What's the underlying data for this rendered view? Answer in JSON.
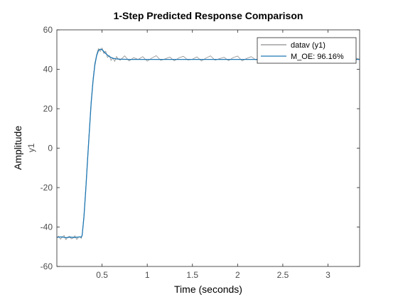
{
  "window": {
    "background_color": "#ffffff"
  },
  "chart_data": {
    "type": "line",
    "title": "1-Step Predicted Response Comparison",
    "xlabel": "Time (seconds)",
    "ylabel": "Amplitude",
    "channel_label": "y1",
    "xlim": [
      0,
      3.35
    ],
    "ylim": [
      -60,
      60
    ],
    "x_ticks": [
      0.5,
      1,
      1.5,
      2,
      2.5,
      3
    ],
    "x_tick_labels": [
      "0.5",
      "1",
      "1.5",
      "2",
      "2.5",
      "3"
    ],
    "y_ticks": [
      -60,
      -40,
      -20,
      0,
      20,
      40,
      60
    ],
    "y_tick_labels": [
      "-60",
      "-40",
      "-20",
      "0",
      "20",
      "40",
      "60"
    ],
    "grid": false,
    "legend_position": "top-right",
    "series": [
      {
        "name": "datav (y1)",
        "color": "#8c8c8c",
        "x": [
          0.0,
          0.02,
          0.04,
          0.06,
          0.08,
          0.1,
          0.12,
          0.14,
          0.16,
          0.18,
          0.2,
          0.22,
          0.24,
          0.26,
          0.27,
          0.28,
          0.3,
          0.32,
          0.34,
          0.36,
          0.38,
          0.4,
          0.42,
          0.44,
          0.46,
          0.48,
          0.5,
          0.52,
          0.54,
          0.56,
          0.58,
          0.6,
          0.62,
          0.64,
          0.66,
          0.68,
          0.7,
          0.75,
          0.8,
          0.85,
          0.9,
          0.95,
          1.0,
          1.05,
          1.1,
          1.15,
          1.2,
          1.25,
          1.3,
          1.35,
          1.4,
          1.45,
          1.5,
          1.55,
          1.6,
          1.65,
          1.7,
          1.75,
          1.8,
          1.85,
          1.9,
          1.95,
          2.0,
          2.05,
          2.1,
          2.15,
          2.2,
          2.25,
          2.3,
          2.35,
          2.4,
          2.45,
          2.5,
          2.55,
          2.6,
          2.65,
          2.7,
          2.75,
          2.8,
          2.85,
          2.9,
          2.95,
          3.0,
          3.05,
          3.1,
          3.15,
          3.2,
          3.25,
          3.3,
          3.35
        ],
        "y": [
          -45.5,
          -44.6,
          -46.2,
          -45.0,
          -44.3,
          -46.4,
          -45.2,
          -44.7,
          -46.0,
          -45.6,
          -44.4,
          -46.3,
          -45.1,
          -44.9,
          -45.8,
          -44.0,
          -34.0,
          -20.0,
          -5.0,
          10.0,
          24.0,
          35.0,
          43.0,
          47.5,
          50.5,
          49.0,
          50.8,
          48.0,
          49.2,
          46.0,
          47.0,
          44.5,
          45.8,
          44.0,
          46.5,
          45.2,
          44.6,
          46.8,
          44.2,
          45.9,
          45.0,
          46.4,
          44.1,
          45.7,
          46.9,
          44.5,
          45.3,
          46.2,
          44.3,
          45.8,
          46.6,
          44.7,
          45.1,
          46.3,
          44.2,
          45.7,
          46.8,
          44.6,
          45.4,
          46.1,
          44.4,
          45.9,
          46.7,
          44.3,
          45.5,
          46.4,
          44.8,
          45.2,
          46.9,
          44.1,
          45.6,
          46.2,
          44.5,
          45.8,
          46.6,
          44.2,
          45.3,
          46.5,
          44.7,
          45.9,
          46.1,
          44.4,
          45.6,
          46.8,
          44.3,
          45.2,
          46.4,
          44.6,
          45.7,
          45.1
        ]
      },
      {
        "name": "M_OE: 96.16%",
        "color": "#1f78b4",
        "x": [
          0.0,
          0.05,
          0.1,
          0.15,
          0.2,
          0.25,
          0.27,
          0.28,
          0.3,
          0.32,
          0.34,
          0.36,
          0.38,
          0.4,
          0.42,
          0.44,
          0.46,
          0.48,
          0.5,
          0.52,
          0.54,
          0.56,
          0.58,
          0.6,
          0.62,
          0.65,
          0.7,
          0.8,
          1.0,
          1.5,
          2.0,
          2.5,
          3.0,
          3.35
        ],
        "y": [
          -45.2,
          -45.0,
          -45.4,
          -45.1,
          -45.3,
          -45.0,
          -45.1,
          -44.2,
          -35.0,
          -21.0,
          -6.0,
          9.0,
          23.0,
          34.0,
          42.0,
          47.0,
          49.5,
          50.2,
          50.0,
          49.0,
          48.0,
          47.2,
          46.5,
          46.0,
          45.6,
          45.3,
          45.1,
          45.0,
          45.0,
          45.0,
          45.0,
          45.0,
          45.0,
          45.0
        ]
      }
    ]
  }
}
